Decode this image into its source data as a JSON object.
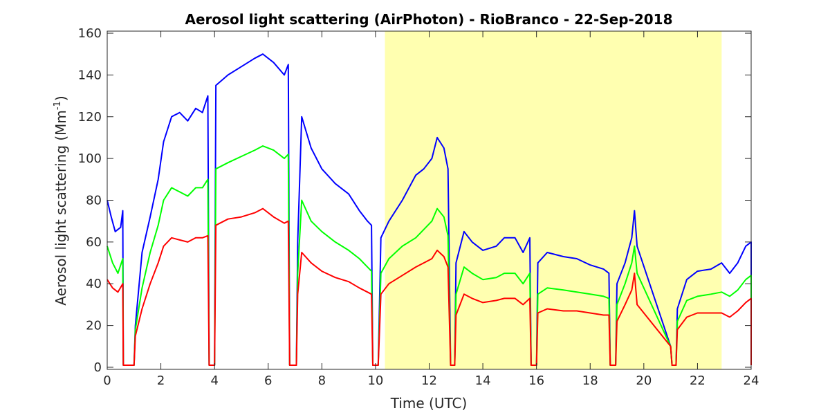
{
  "chart_data": {
    "type": "line",
    "title": "Aerosol light scattering (AirPhoton) - RioBranco - 22-Sep-2018",
    "xlabel": "Time (UTC)",
    "ylabel_main": "Aerosol light scattering (Mm",
    "ylabel_sup": "-1",
    "ylabel_close": ")",
    "xlim": [
      0,
      24
    ],
    "ylim": [
      -1,
      161
    ],
    "xticks": [
      0,
      2,
      4,
      6,
      8,
      10,
      12,
      14,
      16,
      18,
      20,
      22,
      24
    ],
    "yticks": [
      0,
      20,
      40,
      60,
      80,
      100,
      120,
      140,
      160
    ],
    "grid": false,
    "legend": "none",
    "shaded_region": {
      "x_start": 10.35,
      "x_end": 22.9,
      "color": "#ffffb0"
    },
    "series": [
      {
        "color": "#0000ff",
        "points": [
          [
            0.0,
            80
          ],
          [
            0.15,
            72
          ],
          [
            0.3,
            65
          ],
          [
            0.5,
            67
          ],
          [
            0.58,
            75
          ],
          [
            0.6,
            1
          ],
          [
            1.0,
            1
          ],
          [
            1.05,
            20
          ],
          [
            1.3,
            55
          ],
          [
            1.6,
            72
          ],
          [
            1.9,
            90
          ],
          [
            2.1,
            108
          ],
          [
            2.4,
            120
          ],
          [
            2.7,
            122
          ],
          [
            3.0,
            118
          ],
          [
            3.3,
            124
          ],
          [
            3.55,
            122
          ],
          [
            3.75,
            130
          ],
          [
            3.8,
            1
          ],
          [
            4.0,
            1
          ],
          [
            4.05,
            135
          ],
          [
            4.5,
            140
          ],
          [
            5.0,
            144
          ],
          [
            5.5,
            148
          ],
          [
            5.8,
            150
          ],
          [
            6.2,
            146
          ],
          [
            6.6,
            140
          ],
          [
            6.75,
            145
          ],
          [
            6.8,
            1
          ],
          [
            7.05,
            1
          ],
          [
            7.1,
            60
          ],
          [
            7.25,
            120
          ],
          [
            7.6,
            105
          ],
          [
            8.0,
            95
          ],
          [
            8.5,
            88
          ],
          [
            9.0,
            83
          ],
          [
            9.4,
            75
          ],
          [
            9.7,
            70
          ],
          [
            9.85,
            68
          ],
          [
            9.9,
            1
          ],
          [
            10.1,
            1
          ],
          [
            10.2,
            62
          ],
          [
            10.5,
            70
          ],
          [
            11.0,
            80
          ],
          [
            11.5,
            92
          ],
          [
            11.8,
            95
          ],
          [
            12.1,
            100
          ],
          [
            12.3,
            110
          ],
          [
            12.55,
            105
          ],
          [
            12.7,
            95
          ],
          [
            12.8,
            1
          ],
          [
            12.95,
            1
          ],
          [
            13.0,
            50
          ],
          [
            13.3,
            65
          ],
          [
            13.6,
            60
          ],
          [
            14.0,
            56
          ],
          [
            14.5,
            58
          ],
          [
            14.8,
            62
          ],
          [
            15.2,
            62
          ],
          [
            15.5,
            55
          ],
          [
            15.75,
            62
          ],
          [
            15.8,
            1
          ],
          [
            16.0,
            1
          ],
          [
            16.05,
            50
          ],
          [
            16.4,
            55
          ],
          [
            17.0,
            53
          ],
          [
            17.5,
            52
          ],
          [
            18.0,
            49
          ],
          [
            18.5,
            47
          ],
          [
            18.7,
            45
          ],
          [
            18.75,
            1
          ],
          [
            18.95,
            1
          ],
          [
            19.0,
            40
          ],
          [
            19.3,
            50
          ],
          [
            19.55,
            62
          ],
          [
            19.65,
            75
          ],
          [
            19.75,
            58
          ],
          [
            21.0,
            10
          ],
          [
            21.05,
            1
          ],
          [
            21.2,
            1
          ],
          [
            21.25,
            28
          ],
          [
            21.6,
            42
          ],
          [
            22.0,
            46
          ],
          [
            22.5,
            47
          ],
          [
            22.9,
            50
          ],
          [
            23.2,
            45
          ],
          [
            23.5,
            50
          ],
          [
            23.8,
            58
          ],
          [
            24.0,
            60
          ],
          [
            24.0,
            1
          ]
        ]
      },
      {
        "color": "#00ff00",
        "points": [
          [
            0.0,
            58
          ],
          [
            0.2,
            50
          ],
          [
            0.4,
            45
          ],
          [
            0.58,
            52
          ],
          [
            0.6,
            1
          ],
          [
            1.0,
            1
          ],
          [
            1.05,
            18
          ],
          [
            1.3,
            38
          ],
          [
            1.6,
            55
          ],
          [
            1.9,
            68
          ],
          [
            2.1,
            80
          ],
          [
            2.4,
            86
          ],
          [
            2.7,
            84
          ],
          [
            3.0,
            82
          ],
          [
            3.3,
            86
          ],
          [
            3.55,
            86
          ],
          [
            3.75,
            90
          ],
          [
            3.8,
            1
          ],
          [
            4.0,
            1
          ],
          [
            4.05,
            95
          ],
          [
            4.5,
            98
          ],
          [
            5.0,
            101
          ],
          [
            5.5,
            104
          ],
          [
            5.8,
            106
          ],
          [
            6.2,
            104
          ],
          [
            6.6,
            100
          ],
          [
            6.75,
            102
          ],
          [
            6.8,
            1
          ],
          [
            7.05,
            1
          ],
          [
            7.1,
            45
          ],
          [
            7.25,
            80
          ],
          [
            7.6,
            70
          ],
          [
            8.0,
            65
          ],
          [
            8.5,
            60
          ],
          [
            9.0,
            56
          ],
          [
            9.4,
            52
          ],
          [
            9.7,
            48
          ],
          [
            9.85,
            46
          ],
          [
            9.9,
            1
          ],
          [
            10.1,
            1
          ],
          [
            10.2,
            45
          ],
          [
            10.5,
            52
          ],
          [
            11.0,
            58
          ],
          [
            11.5,
            62
          ],
          [
            11.8,
            66
          ],
          [
            12.1,
            70
          ],
          [
            12.3,
            76
          ],
          [
            12.55,
            72
          ],
          [
            12.7,
            63
          ],
          [
            12.8,
            1
          ],
          [
            12.95,
            1
          ],
          [
            13.0,
            35
          ],
          [
            13.3,
            48
          ],
          [
            13.6,
            45
          ],
          [
            14.0,
            42
          ],
          [
            14.5,
            43
          ],
          [
            14.8,
            45
          ],
          [
            15.2,
            45
          ],
          [
            15.5,
            40
          ],
          [
            15.75,
            45
          ],
          [
            15.8,
            1
          ],
          [
            16.0,
            1
          ],
          [
            16.05,
            35
          ],
          [
            16.4,
            38
          ],
          [
            17.0,
            37
          ],
          [
            17.5,
            36
          ],
          [
            18.0,
            35
          ],
          [
            18.5,
            34
          ],
          [
            18.7,
            33
          ],
          [
            18.75,
            1
          ],
          [
            18.95,
            1
          ],
          [
            19.0,
            30
          ],
          [
            19.3,
            40
          ],
          [
            19.55,
            50
          ],
          [
            19.65,
            58
          ],
          [
            19.75,
            45
          ],
          [
            21.0,
            10
          ],
          [
            21.05,
            1
          ],
          [
            21.2,
            1
          ],
          [
            21.25,
            22
          ],
          [
            21.6,
            32
          ],
          [
            22.0,
            34
          ],
          [
            22.5,
            35
          ],
          [
            22.9,
            36
          ],
          [
            23.2,
            34
          ],
          [
            23.5,
            37
          ],
          [
            23.8,
            42
          ],
          [
            24.0,
            44
          ],
          [
            24.0,
            1
          ]
        ]
      },
      {
        "color": "#ff0000",
        "points": [
          [
            0.0,
            42
          ],
          [
            0.2,
            38
          ],
          [
            0.4,
            36
          ],
          [
            0.58,
            40
          ],
          [
            0.6,
            1
          ],
          [
            1.0,
            1
          ],
          [
            1.05,
            15
          ],
          [
            1.3,
            28
          ],
          [
            1.6,
            40
          ],
          [
            1.9,
            50
          ],
          [
            2.1,
            58
          ],
          [
            2.4,
            62
          ],
          [
            2.7,
            61
          ],
          [
            3.0,
            60
          ],
          [
            3.3,
            62
          ],
          [
            3.55,
            62
          ],
          [
            3.75,
            63
          ],
          [
            3.8,
            1
          ],
          [
            4.0,
            1
          ],
          [
            4.05,
            68
          ],
          [
            4.5,
            71
          ],
          [
            5.0,
            72
          ],
          [
            5.5,
            74
          ],
          [
            5.8,
            76
          ],
          [
            6.2,
            72
          ],
          [
            6.6,
            69
          ],
          [
            6.75,
            70
          ],
          [
            6.8,
            1
          ],
          [
            7.05,
            1
          ],
          [
            7.1,
            35
          ],
          [
            7.25,
            55
          ],
          [
            7.6,
            50
          ],
          [
            8.0,
            46
          ],
          [
            8.5,
            43
          ],
          [
            9.0,
            41
          ],
          [
            9.4,
            38
          ],
          [
            9.7,
            36
          ],
          [
            9.85,
            35
          ],
          [
            9.9,
            1
          ],
          [
            10.1,
            1
          ],
          [
            10.2,
            35
          ],
          [
            10.5,
            40
          ],
          [
            11.0,
            44
          ],
          [
            11.5,
            48
          ],
          [
            11.8,
            50
          ],
          [
            12.1,
            52
          ],
          [
            12.3,
            56
          ],
          [
            12.55,
            53
          ],
          [
            12.7,
            48
          ],
          [
            12.8,
            1
          ],
          [
            12.95,
            1
          ],
          [
            13.0,
            25
          ],
          [
            13.3,
            35
          ],
          [
            13.6,
            33
          ],
          [
            14.0,
            31
          ],
          [
            14.5,
            32
          ],
          [
            14.8,
            33
          ],
          [
            15.2,
            33
          ],
          [
            15.5,
            30
          ],
          [
            15.75,
            33
          ],
          [
            15.8,
            1
          ],
          [
            16.0,
            1
          ],
          [
            16.05,
            26
          ],
          [
            16.4,
            28
          ],
          [
            17.0,
            27
          ],
          [
            17.5,
            27
          ],
          [
            18.0,
            26
          ],
          [
            18.5,
            25
          ],
          [
            18.7,
            25
          ],
          [
            18.75,
            1
          ],
          [
            18.95,
            1
          ],
          [
            19.0,
            22
          ],
          [
            19.3,
            30
          ],
          [
            19.55,
            37
          ],
          [
            19.65,
            45
          ],
          [
            19.75,
            30
          ],
          [
            21.0,
            10
          ],
          [
            21.05,
            1
          ],
          [
            21.2,
            1
          ],
          [
            21.25,
            18
          ],
          [
            21.6,
            24
          ],
          [
            22.0,
            26
          ],
          [
            22.5,
            26
          ],
          [
            22.9,
            26
          ],
          [
            23.2,
            24
          ],
          [
            23.5,
            27
          ],
          [
            23.8,
            31
          ],
          [
            24.0,
            33
          ],
          [
            24.0,
            1
          ]
        ]
      }
    ]
  }
}
